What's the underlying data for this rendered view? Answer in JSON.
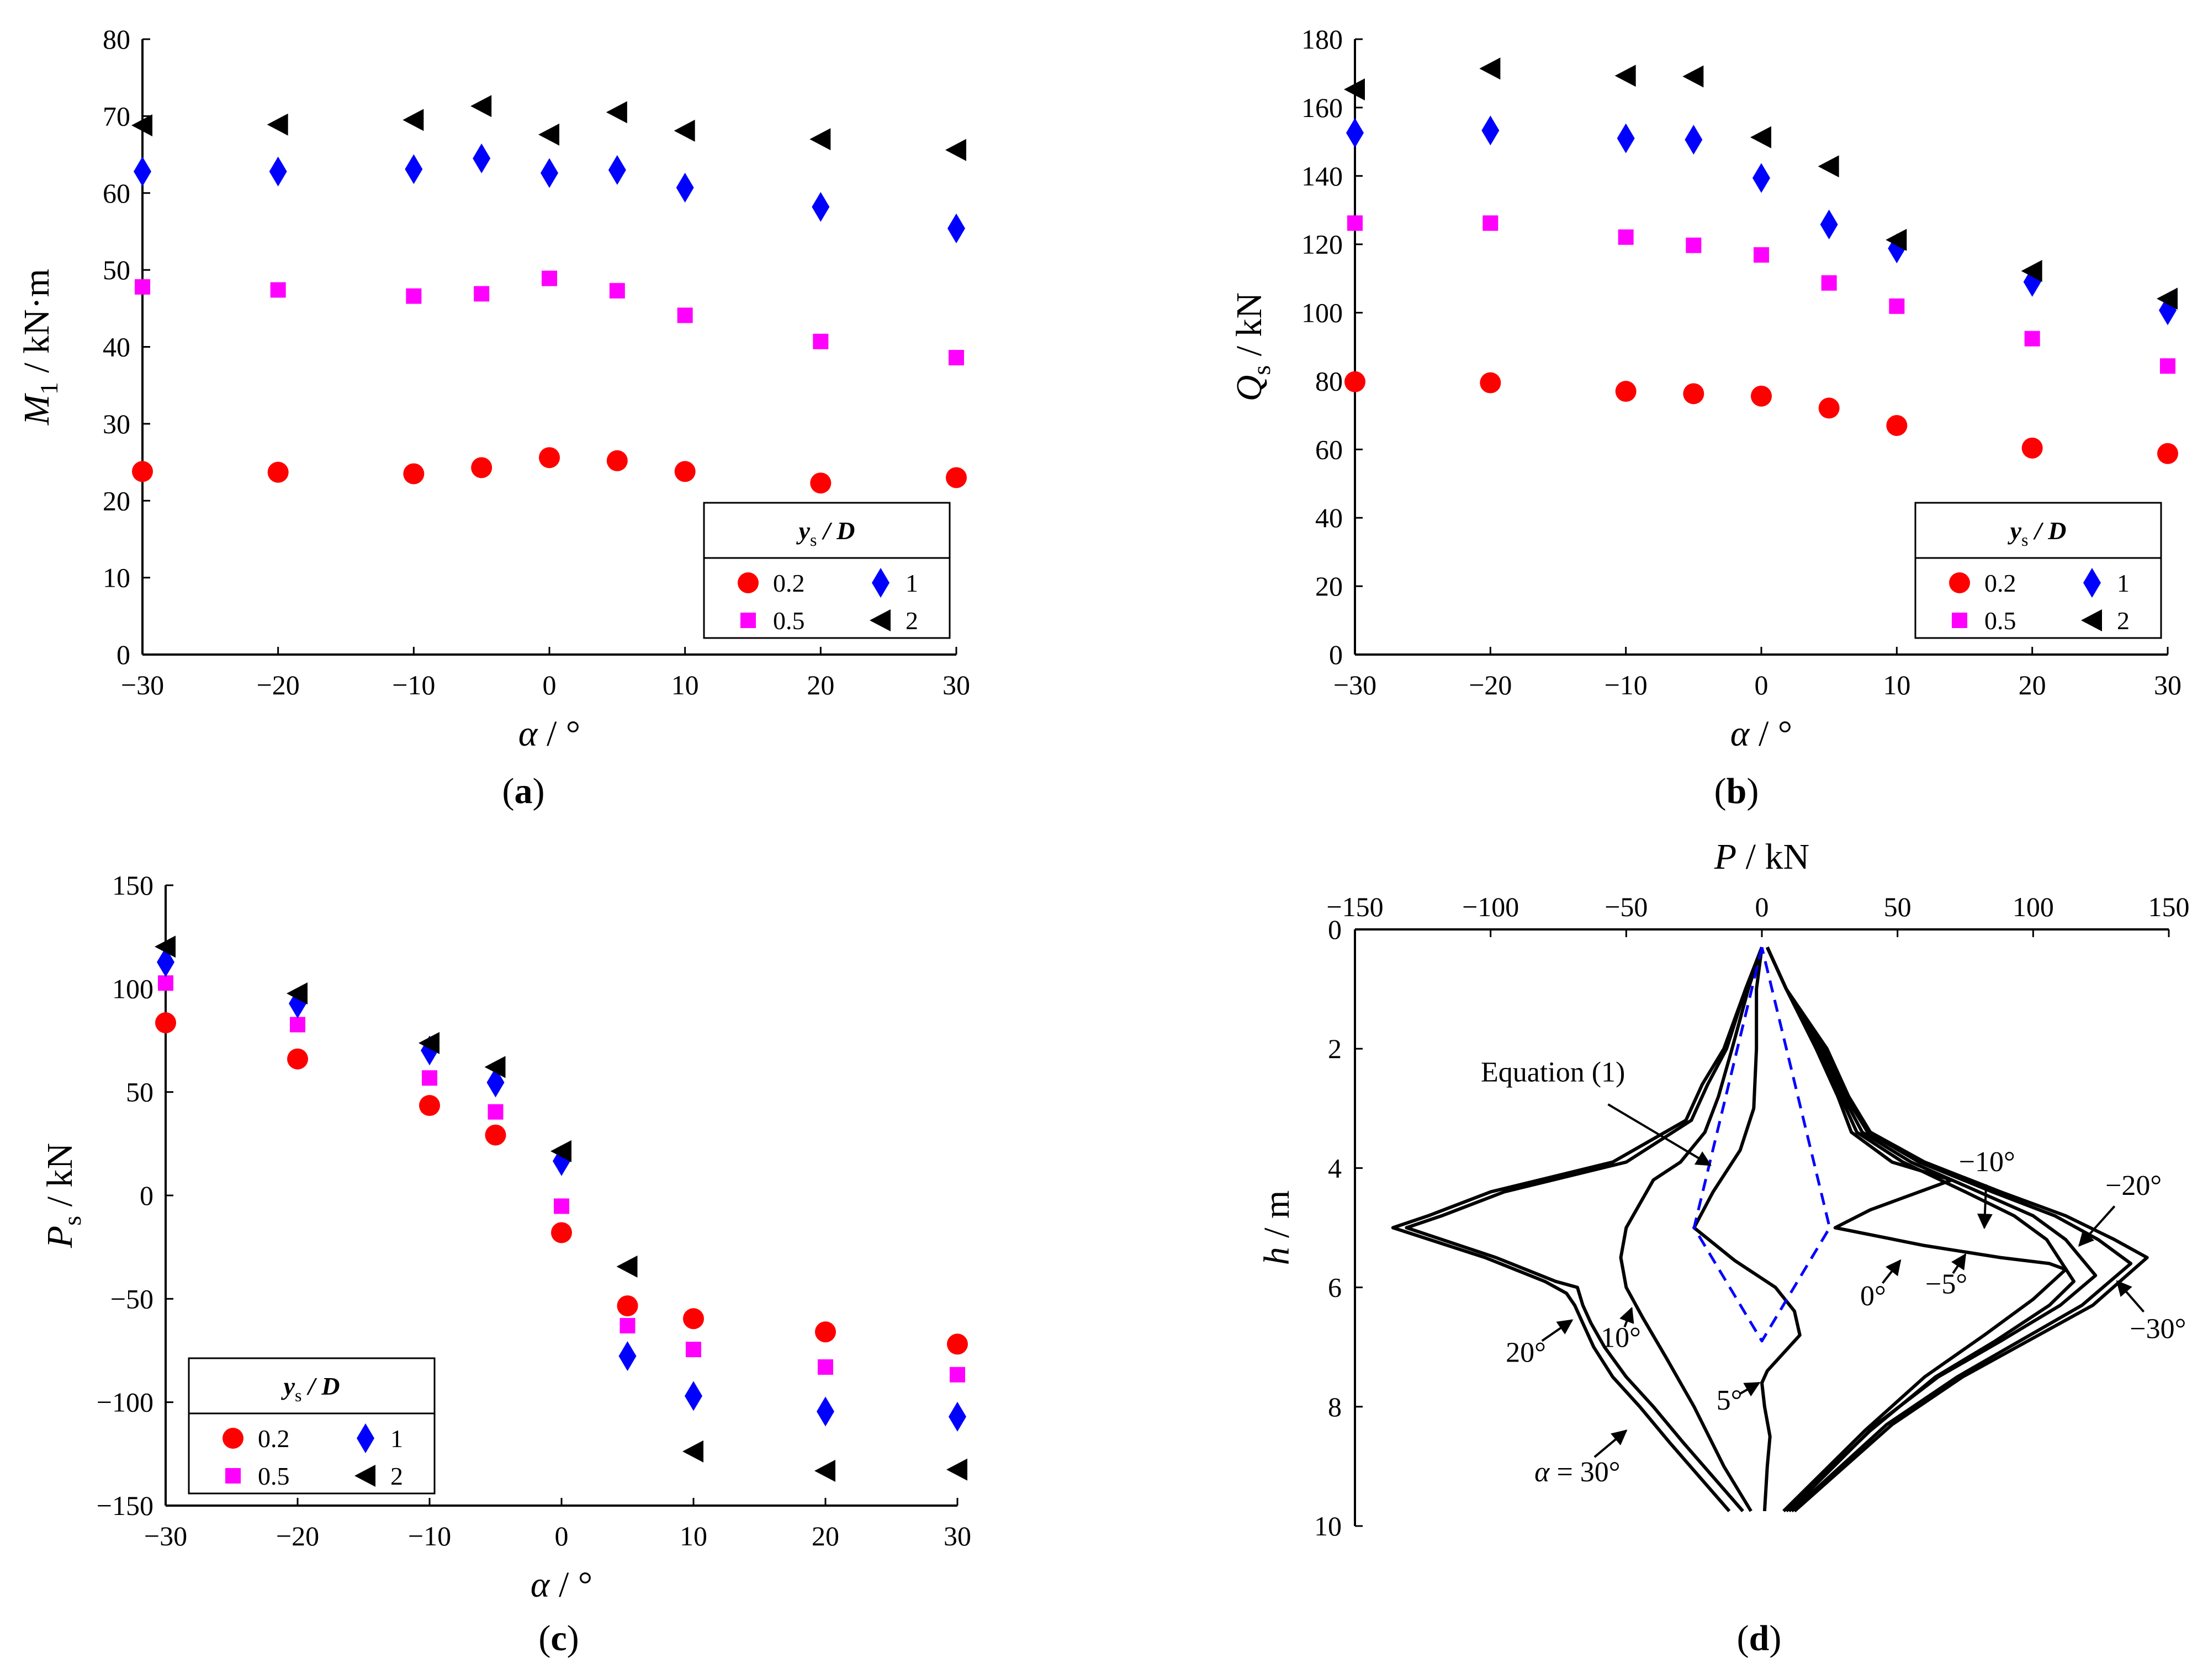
{
  "chart_data": [
    {
      "id": "a",
      "type": "scatter",
      "panel_label": "(a)",
      "panel_letter": "a",
      "xlabel": "α / °",
      "ylabel": "M1 / kN·m",
      "ylabel_main": "M",
      "ylabel_sub": "1",
      "ylabel_unit": " / kN·m",
      "xlim": [
        -30,
        30
      ],
      "ylim": [
        0,
        80
      ],
      "xticks": [
        -30,
        -20,
        -10,
        0,
        10,
        20,
        30
      ],
      "yticks": [
        0,
        10,
        20,
        30,
        40,
        50,
        60,
        70,
        80
      ],
      "x": [
        -30,
        -20,
        -10,
        -5,
        0,
        5,
        10,
        20,
        30
      ],
      "legend": {
        "title": "ys / D",
        "title_main": "y",
        "title_sub": "s",
        "title_rest": " / D",
        "position": "bottom-right"
      },
      "series": [
        {
          "name": "0.2",
          "marker": "circle",
          "color": "#ff0000",
          "values": [
            23.8,
            23.7,
            23.5,
            24.3,
            25.6,
            25.2,
            23.8,
            22.3,
            23.0
          ]
        },
        {
          "name": "0.5",
          "marker": "square",
          "color": "#ff00ff",
          "values": [
            47.8,
            47.4,
            46.6,
            46.9,
            48.9,
            47.3,
            44.1,
            40.7,
            38.6
          ]
        },
        {
          "name": "1",
          "marker": "diamond",
          "color": "#0000ff",
          "values": [
            62.8,
            62.8,
            63.1,
            64.5,
            62.6,
            63.0,
            60.7,
            58.2,
            55.4
          ]
        },
        {
          "name": "2",
          "marker": "triangle-left",
          "color": "#000000",
          "values": [
            68.8,
            68.9,
            69.5,
            71.3,
            67.6,
            70.5,
            68.1,
            67.0,
            65.6
          ]
        }
      ]
    },
    {
      "id": "b",
      "type": "scatter",
      "panel_label": "(b)",
      "panel_letter": "b",
      "xlabel": "α / °",
      "ylabel": "Qs / kN",
      "ylabel_main": "Q",
      "ylabel_sub": "s",
      "ylabel_unit": " / kN",
      "xlim": [
        -30,
        30
      ],
      "ylim": [
        0,
        180
      ],
      "xticks": [
        -30,
        -20,
        -10,
        0,
        10,
        20,
        30
      ],
      "yticks": [
        0,
        20,
        40,
        60,
        80,
        100,
        120,
        140,
        160,
        180
      ],
      "x": [
        -30,
        -20,
        -10,
        -5,
        0,
        5,
        10,
        20,
        30
      ],
      "legend": {
        "title": "ys / D",
        "title_main": "y",
        "title_sub": "s",
        "title_rest": " / D",
        "position": "bottom-right"
      },
      "series": [
        {
          "name": "0.2",
          "marker": "circle",
          "color": "#ff0000",
          "values": [
            79.8,
            79.5,
            77.0,
            76.3,
            75.6,
            72.1,
            67.0,
            60.4,
            58.8
          ]
        },
        {
          "name": "0.5",
          "marker": "square",
          "color": "#ff00ff",
          "values": [
            126.2,
            126.2,
            122.1,
            119.7,
            116.9,
            108.7,
            101.9,
            92.4,
            84.4
          ]
        },
        {
          "name": "1",
          "marker": "diamond",
          "color": "#0000ff",
          "values": [
            152.6,
            153.3,
            151.0,
            150.6,
            139.4,
            125.8,
            118.8,
            109.0,
            100.7
          ]
        },
        {
          "name": "2",
          "marker": "triangle-left",
          "color": "#000000",
          "values": [
            165.3,
            171.4,
            169.3,
            169.1,
            151.3,
            142.8,
            121.3,
            112.2,
            104.1
          ]
        }
      ]
    },
    {
      "id": "c",
      "type": "scatter",
      "panel_label": "(c)",
      "panel_letter": "c",
      "xlabel": "α / °",
      "ylabel": "Ps / kN",
      "ylabel_main": "P",
      "ylabel_sub": "s",
      "ylabel_unit": " / kN",
      "xlim": [
        -30,
        30
      ],
      "ylim": [
        -150,
        150
      ],
      "xticks": [
        -30,
        -20,
        -10,
        0,
        10,
        20,
        30
      ],
      "yticks": [
        -150,
        -100,
        -50,
        0,
        50,
        100,
        150
      ],
      "x": [
        -30,
        -20,
        -10,
        -5,
        0,
        5,
        10,
        20,
        30
      ],
      "legend": {
        "title": "ys / D",
        "title_main": "y",
        "title_sub": "s",
        "title_rest": " / D",
        "position": "bottom-left"
      },
      "series": [
        {
          "name": "0.2",
          "marker": "circle",
          "color": "#ff0000",
          "values": [
            83.5,
            66.0,
            43.5,
            29.2,
            -18.0,
            -53.4,
            -59.6,
            -66.0,
            -71.9
          ]
        },
        {
          "name": "0.5",
          "marker": "square",
          "color": "#ff00ff",
          "values": [
            102.7,
            82.6,
            56.8,
            40.4,
            -5.2,
            -63.0,
            -74.5,
            -83.0,
            -86.7
          ]
        },
        {
          "name": "1",
          "marker": "diamond",
          "color": "#0000ff",
          "values": [
            112.8,
            92.8,
            70.1,
            54.6,
            16.6,
            -77.7,
            -97.0,
            -104.5,
            -107.0
          ]
        },
        {
          "name": "2",
          "marker": "triangle-left",
          "color": "#000000",
          "values": [
            120.3,
            97.7,
            73.7,
            62.1,
            21.4,
            -34.4,
            -123.8,
            -133.2,
            -132.6
          ]
        }
      ]
    },
    {
      "id": "d",
      "type": "line",
      "panel_label": "(d)",
      "panel_letter": "d",
      "xlabel": "P / kN",
      "xlabel_main": "P",
      "xlabel_unit": " / kN",
      "ylabel": "h / m",
      "ylabel_main": "h",
      "ylabel_unit": " / m",
      "xaxis_position": "top",
      "yaxis_reversed": true,
      "xlim": [
        -150,
        150
      ],
      "ylim": [
        0,
        10
      ],
      "xticks": [
        -150,
        -100,
        -50,
        0,
        50,
        100,
        150
      ],
      "yticks": [
        0,
        2,
        4,
        6,
        8,
        10
      ],
      "series": [
        {
          "name": "α = 30°",
          "style": "solid",
          "color": "#000000",
          "x": [
            0,
            -6,
            -14,
            -22,
            -28,
            -55,
            -100,
            -123,
            -136,
            -102,
            -80,
            -72,
            -69,
            -66,
            -62,
            -55,
            -45,
            -34,
            -12
          ],
          "y": [
            0.3,
            1.0,
            2.0,
            2.6,
            3.2,
            3.9,
            4.4,
            4.8,
            5.0,
            5.5,
            5.9,
            6.1,
            6.3,
            6.6,
            7.0,
            7.5,
            8.0,
            8.6,
            9.75
          ]
        },
        {
          "name": "20°",
          "style": "solid",
          "color": "#000000",
          "x": [
            0,
            -6,
            -13,
            -20,
            -26,
            -50,
            -95,
            -118,
            -131,
            -98,
            -76,
            -68,
            -66,
            -63,
            -58,
            -50,
            -40,
            -29,
            -7
          ],
          "y": [
            0.3,
            1.0,
            2.0,
            2.6,
            3.2,
            3.9,
            4.4,
            4.8,
            5.0,
            5.5,
            5.9,
            6.0,
            6.3,
            6.6,
            7.0,
            7.5,
            8.0,
            8.6,
            9.75
          ]
        },
        {
          "name": "10°",
          "style": "solid",
          "color": "#000000",
          "x": [
            0,
            -5,
            -11,
            -16,
            -21,
            -30,
            -40,
            -50,
            -52,
            -50,
            -44,
            -35,
            -25,
            -14,
            -4
          ],
          "y": [
            0.3,
            1.0,
            2.0,
            2.8,
            3.4,
            3.9,
            4.2,
            5.0,
            5.5,
            6.0,
            6.5,
            7.2,
            8.0,
            9.0,
            9.75
          ]
        },
        {
          "name": "5°",
          "style": "solid",
          "color": "#000000",
          "x": [
            0,
            -2,
            -2,
            -3,
            -8,
            -18,
            -25,
            -10,
            5,
            12,
            14,
            8,
            2,
            0,
            1,
            3,
            2,
            1
          ],
          "y": [
            0.3,
            1.0,
            2.0,
            3.0,
            3.7,
            4.4,
            5.0,
            5.55,
            6.0,
            6.4,
            6.8,
            7.1,
            7.4,
            7.6,
            8.0,
            8.5,
            9.0,
            9.75
          ]
        },
        {
          "name": "0°",
          "style": "solid",
          "color": "#000000",
          "x": [
            2,
            9,
            20,
            28,
            33,
            48,
            70,
            58,
            40,
            27,
            60,
            88,
            106,
            112,
            100,
            82,
            60,
            38,
            8
          ],
          "y": [
            0.3,
            1.0,
            2.0,
            2.8,
            3.4,
            3.9,
            4.2,
            4.4,
            4.7,
            5.0,
            5.3,
            5.5,
            5.6,
            5.7,
            6.2,
            6.8,
            7.5,
            8.4,
            9.75
          ]
        },
        {
          "name": "−5°",
          "style": "solid",
          "color": "#000000",
          "x": [
            2,
            9,
            21,
            29,
            35,
            52,
            75,
            93,
            105,
            115,
            106,
            86,
            64,
            40,
            9
          ],
          "y": [
            0.3,
            1.0,
            2.0,
            2.8,
            3.4,
            3.9,
            4.4,
            4.8,
            5.2,
            5.9,
            6.3,
            6.9,
            7.5,
            8.4,
            9.75
          ]
        },
        {
          "name": "−10°",
          "style": "solid",
          "color": "#000000",
          "x": [
            2,
            9,
            22,
            30,
            37,
            55,
            80,
            100,
            112,
            123,
            110,
            88,
            65,
            42,
            10
          ],
          "y": [
            0.3,
            1.0,
            2.0,
            2.8,
            3.4,
            3.9,
            4.4,
            4.8,
            5.2,
            5.8,
            6.3,
            6.9,
            7.5,
            8.3,
            9.75
          ]
        },
        {
          "name": "−20°",
          "style": "solid",
          "color": "#000000",
          "x": [
            2,
            9,
            23,
            31,
            39,
            58,
            85,
            108,
            124,
            136,
            118,
            95,
            72,
            46,
            11
          ],
          "y": [
            0.3,
            1.0,
            2.0,
            2.8,
            3.4,
            3.9,
            4.4,
            4.8,
            5.2,
            5.6,
            6.3,
            6.9,
            7.5,
            8.3,
            9.75
          ]
        },
        {
          "name": "−30°",
          "style": "solid",
          "color": "#000000",
          "x": [
            2,
            9,
            24,
            32,
            40,
            60,
            88,
            112,
            130,
            142,
            122,
            98,
            74,
            48,
            12
          ],
          "y": [
            0.3,
            1.0,
            2.0,
            2.8,
            3.4,
            3.9,
            4.4,
            4.8,
            5.2,
            5.5,
            6.3,
            6.9,
            7.5,
            8.3,
            9.75
          ]
        },
        {
          "name": "Equation (1)",
          "style": "dashed",
          "color": "#0000ff",
          "x": [
            0,
            -25,
            0,
            25,
            0
          ],
          "y": [
            0.3,
            5.0,
            6.9,
            5.0,
            0.3
          ]
        }
      ],
      "annotations": [
        {
          "text": "Equation (1)",
          "x": -77,
          "y": 2.55,
          "align": "middle",
          "ax": -19,
          "ay": 3.95
        },
        {
          "text": "10°",
          "x": -52,
          "y": 7.0,
          "align": "middle",
          "ax": -48,
          "ay": 6.35
        },
        {
          "text": "20°",
          "x": -87,
          "y": 7.25,
          "align": "middle",
          "ax": -70,
          "ay": 6.55
        },
        {
          "text": "5°",
          "x": -12,
          "y": 8.05,
          "align": "middle",
          "ax": -1,
          "ay": 7.6
        },
        {
          "text": "0°",
          "x": 41,
          "y": 6.3,
          "align": "middle",
          "ax": 51,
          "ay": 5.55
        },
        {
          "text": "−5°",
          "x": 68,
          "y": 6.1,
          "align": "middle",
          "ax": 75,
          "ay": 5.45
        },
        {
          "text": "α = 30°",
          "x": -68,
          "y": 9.25,
          "align": "middle",
          "ax": -50,
          "ay": 8.4
        },
        {
          "text": "−10°",
          "x": 83,
          "y": 4.05,
          "align": "middle",
          "ax": 82,
          "ay": 5.0
        },
        {
          "text": "−20°",
          "x": 137,
          "y": 4.45,
          "align": "middle",
          "ax": 117,
          "ay": 5.3
        },
        {
          "text": "−30°",
          "x": 146,
          "y": 6.85,
          "align": "middle",
          "ax": 131,
          "ay": 5.9
        }
      ]
    }
  ]
}
